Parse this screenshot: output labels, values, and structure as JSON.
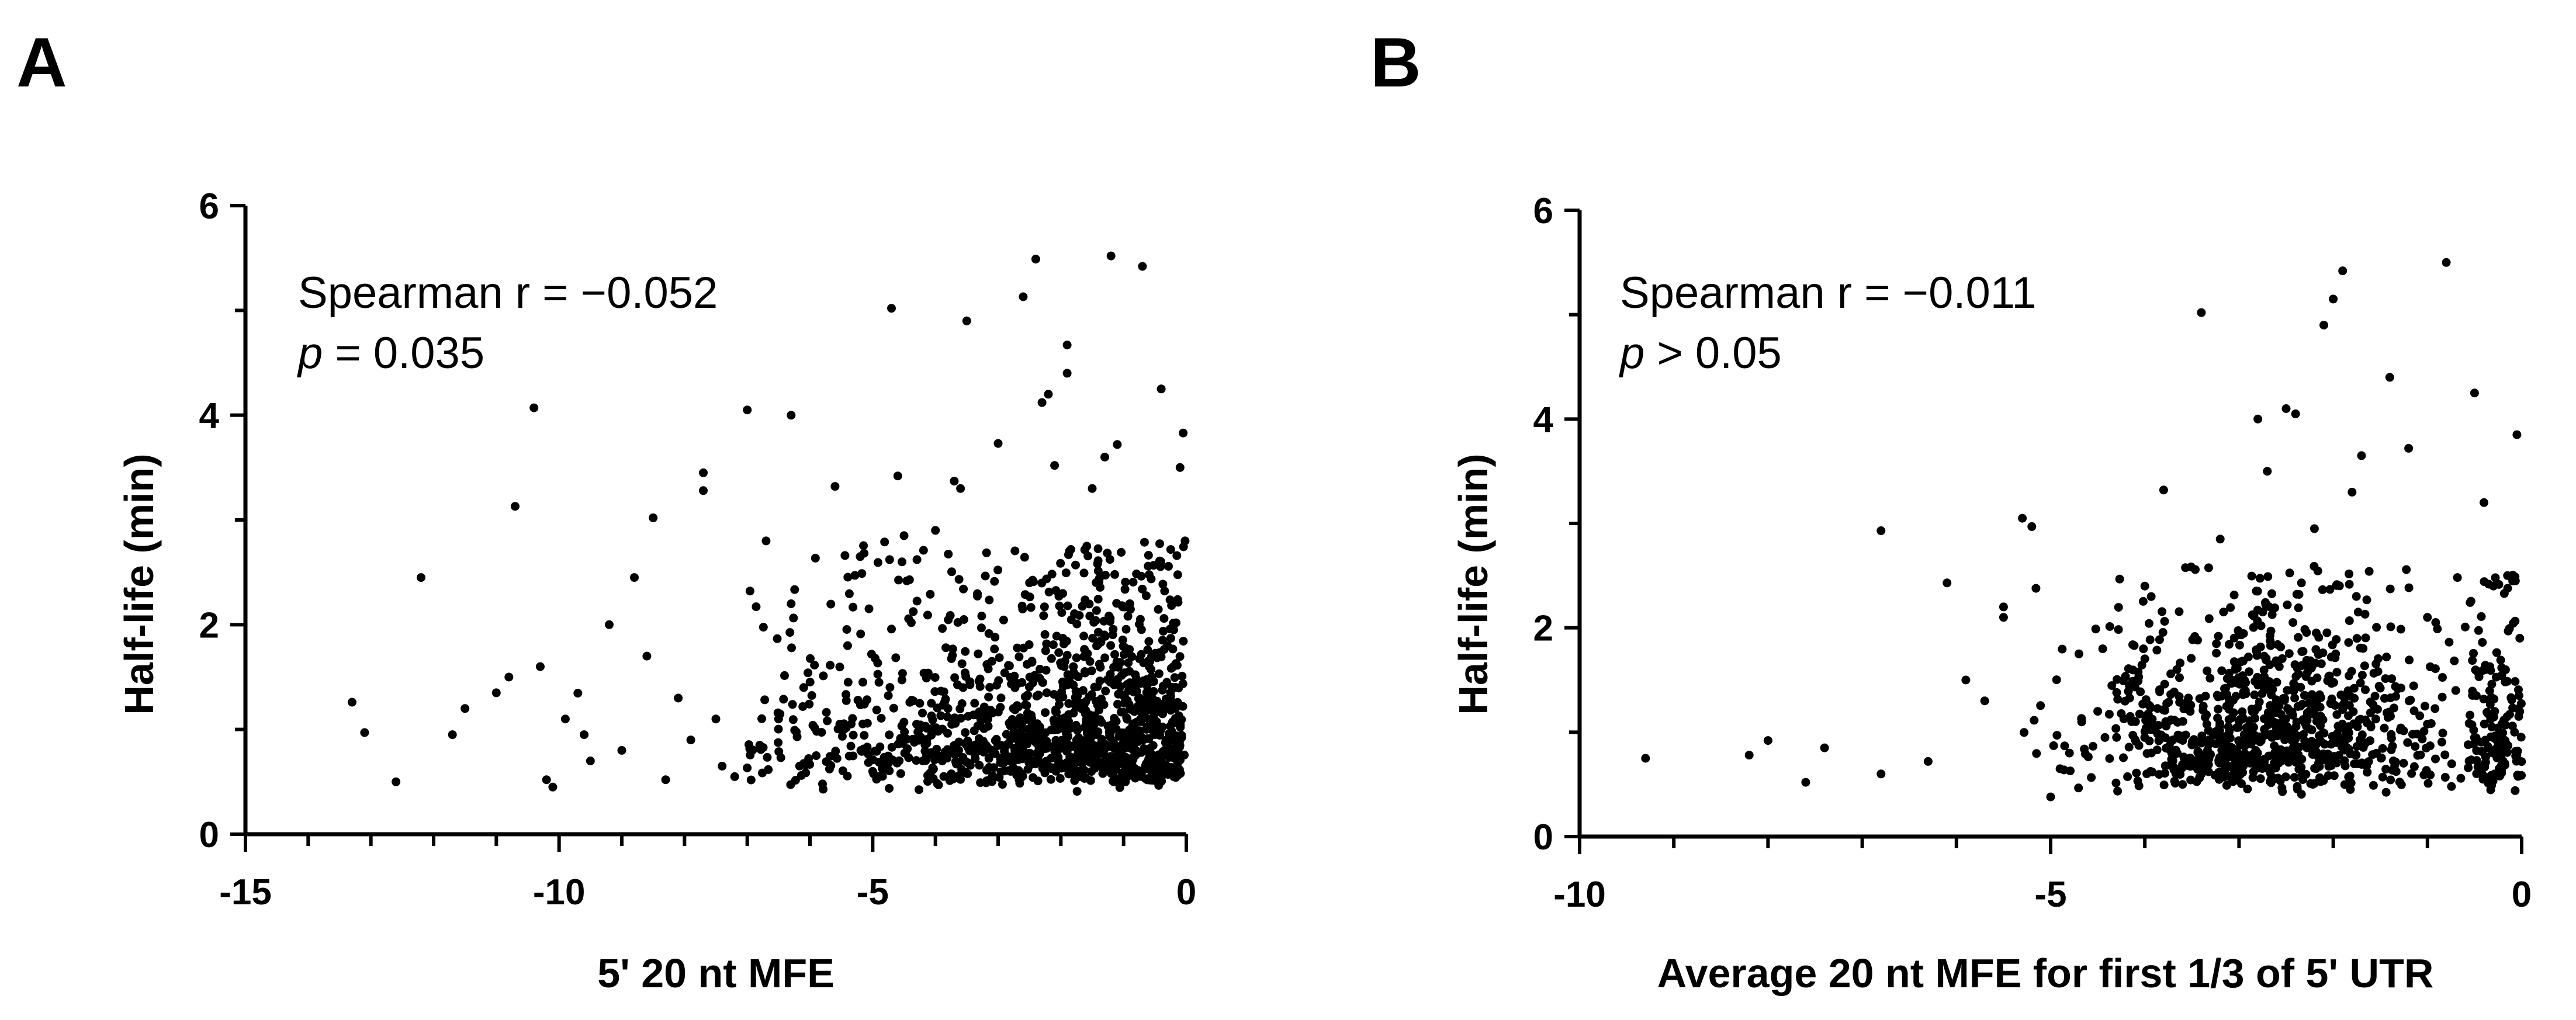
{
  "chart_data": [
    {
      "type": "scatter",
      "panel_label": "A",
      "xlabel": "5' 20 nt MFE",
      "ylabel": "Half-life (min)",
      "xlim": [
        -15,
        0
      ],
      "ylim": [
        0,
        6
      ],
      "xticks": [
        -15,
        -10,
        -5,
        0
      ],
      "yticks": [
        0,
        2,
        4,
        6
      ],
      "x_tick_labels": [
        "-15",
        "-10",
        "-5",
        "0"
      ],
      "y_tick_labels": [
        "0",
        "2",
        "4",
        "6"
      ],
      "x_minor_step": 1,
      "y_minor_step": 1,
      "annotation": {
        "line1": "Spearman r = −0.052",
        "p_symbol": "p",
        "p_rest": " = 0.035"
      },
      "points": [
        [
          -13.3,
          1.26
        ],
        [
          -13.1,
          0.97
        ],
        [
          -12.6,
          0.5
        ],
        [
          -12.2,
          2.45
        ],
        [
          -11.7,
          0.95
        ],
        [
          -11.5,
          1.2
        ],
        [
          -11.0,
          1.35
        ],
        [
          -10.8,
          1.5
        ],
        [
          -10.7,
          3.13
        ],
        [
          -10.4,
          4.07
        ],
        [
          -10.3,
          1.6
        ],
        [
          -10.2,
          0.52
        ],
        [
          -10.1,
          0.45
        ],
        [
          -9.9,
          1.1
        ],
        [
          -9.6,
          0.95
        ],
        [
          -9.5,
          0.7
        ],
        [
          -9.2,
          2.0
        ],
        [
          -9.0,
          0.8
        ],
        [
          -8.8,
          2.45
        ],
        [
          -8.6,
          1.7
        ],
        [
          -8.5,
          3.02
        ],
        [
          -8.3,
          0.52
        ],
        [
          -8.1,
          1.3
        ],
        [
          -7.9,
          0.9
        ],
        [
          -7.7,
          3.45
        ],
        [
          -7.7,
          3.28
        ],
        [
          -7.5,
          1.1
        ],
        [
          -7.4,
          0.65
        ],
        [
          -7.2,
          0.55
        ],
        [
          -7.0,
          4.05
        ],
        [
          -6.8,
          0.85
        ],
        [
          -6.7,
          2.8
        ],
        [
          -6.5,
          1.1
        ],
        [
          -6.3,
          2.2
        ],
        [
          -6.3,
          4.0
        ],
        [
          -6.1,
          1.4
        ],
        [
          -5.9,
          0.75
        ],
        [
          -5.8,
          0.48
        ],
        [
          -5.6,
          3.32
        ],
        [
          -5.4,
          1.8
        ],
        [
          -5.2,
          2.65
        ],
        [
          -5.0,
          0.6
        ],
        [
          -4.9,
          1.45
        ],
        [
          -4.7,
          5.02
        ],
        [
          -4.6,
          3.42
        ],
        [
          -4.5,
          2.85
        ],
        [
          -4.3,
          1.05
        ],
        [
          -4.2,
          0.7
        ],
        [
          -4.0,
          2.9
        ],
        [
          -3.8,
          1.2
        ],
        [
          -3.7,
          3.37
        ],
        [
          -3.6,
          3.3
        ],
        [
          -3.5,
          4.9
        ],
        [
          -3.3,
          0.85
        ],
        [
          -3.1,
          1.65
        ],
        [
          -3.0,
          3.73
        ],
        [
          -2.8,
          0.6
        ],
        [
          -2.6,
          5.13
        ],
        [
          -2.5,
          2.4
        ],
        [
          -2.4,
          5.49
        ],
        [
          -2.3,
          4.12
        ],
        [
          -2.2,
          4.2
        ],
        [
          -2.1,
          3.52
        ],
        [
          -2.0,
          1.1
        ],
        [
          -1.9,
          4.4
        ],
        [
          -1.9,
          4.67
        ],
        [
          -1.8,
          1.6
        ],
        [
          -1.6,
          0.7
        ],
        [
          -1.5,
          3.3
        ],
        [
          -1.3,
          3.6
        ],
        [
          -1.2,
          5.52
        ],
        [
          -1.1,
          3.72
        ],
        [
          -0.9,
          2.2
        ],
        [
          -0.7,
          5.42
        ],
        [
          -0.5,
          0.95
        ],
        [
          -0.4,
          4.25
        ],
        [
          -0.3,
          1.8
        ],
        [
          -0.2,
          0.55
        ],
        [
          -0.1,
          3.5
        ],
        [
          -0.05,
          3.83
        ],
        [
          -0.02,
          2.8
        ]
      ]
    },
    {
      "type": "scatter",
      "panel_label": "B",
      "xlabel": "Average 20 nt MFE for first 1/3 of 5' UTR",
      "ylabel": "Half-life (min)",
      "xlim": [
        -10,
        0
      ],
      "ylim": [
        0,
        6
      ],
      "xticks": [
        -10,
        -5,
        0
      ],
      "yticks": [
        0,
        2,
        4,
        6
      ],
      "x_tick_labels": [
        "-10",
        "-5",
        "0"
      ],
      "y_tick_labels": [
        "0",
        "2",
        "4",
        "6"
      ],
      "x_minor_step": 1,
      "y_minor_step": 1,
      "annotation": {
        "line1": "Spearman r = −0.011",
        "p_symbol": "p",
        "p_rest": " > 0.05"
      },
      "points": [
        [
          -9.3,
          0.75
        ],
        [
          -8.2,
          0.78
        ],
        [
          -8.0,
          0.92
        ],
        [
          -7.6,
          0.52
        ],
        [
          -7.4,
          0.85
        ],
        [
          -6.8,
          2.93
        ],
        [
          -6.8,
          0.6
        ],
        [
          -6.3,
          0.72
        ],
        [
          -6.1,
          2.43
        ],
        [
          -5.9,
          1.5
        ],
        [
          -5.7,
          1.3
        ],
        [
          -5.5,
          2.2
        ],
        [
          -5.5,
          2.1
        ],
        [
          -5.3,
          3.05
        ],
        [
          -5.2,
          2.97
        ],
        [
          -5.0,
          0.38
        ],
        [
          -4.9,
          0.65
        ],
        [
          -4.7,
          1.75
        ],
        [
          -4.5,
          1.2
        ],
        [
          -4.3,
          0.95
        ],
        [
          -4.0,
          2.4
        ],
        [
          -3.8,
          3.32
        ],
        [
          -3.6,
          0.5
        ],
        [
          -3.4,
          5.02
        ],
        [
          -3.2,
          2.85
        ],
        [
          -3.0,
          1.1
        ],
        [
          -2.8,
          4.0
        ],
        [
          -2.7,
          3.5
        ],
        [
          -2.5,
          4.1
        ],
        [
          -2.4,
          4.05
        ],
        [
          -2.2,
          2.95
        ],
        [
          -2.1,
          4.9
        ],
        [
          -2.0,
          5.15
        ],
        [
          -1.9,
          5.42
        ],
        [
          -1.8,
          3.3
        ],
        [
          -1.7,
          3.65
        ],
        [
          -1.6,
          1.05
        ],
        [
          -1.4,
          4.4
        ],
        [
          -1.2,
          3.72
        ],
        [
          -1.0,
          2.1
        ],
        [
          -0.8,
          5.5
        ],
        [
          -0.7,
          1.4
        ],
        [
          -0.5,
          4.25
        ],
        [
          -0.4,
          3.2
        ],
        [
          -0.3,
          2.4
        ],
        [
          -0.15,
          2.5
        ],
        [
          -0.05,
          3.85
        ],
        [
          -0.02,
          1.9
        ]
      ]
    }
  ]
}
